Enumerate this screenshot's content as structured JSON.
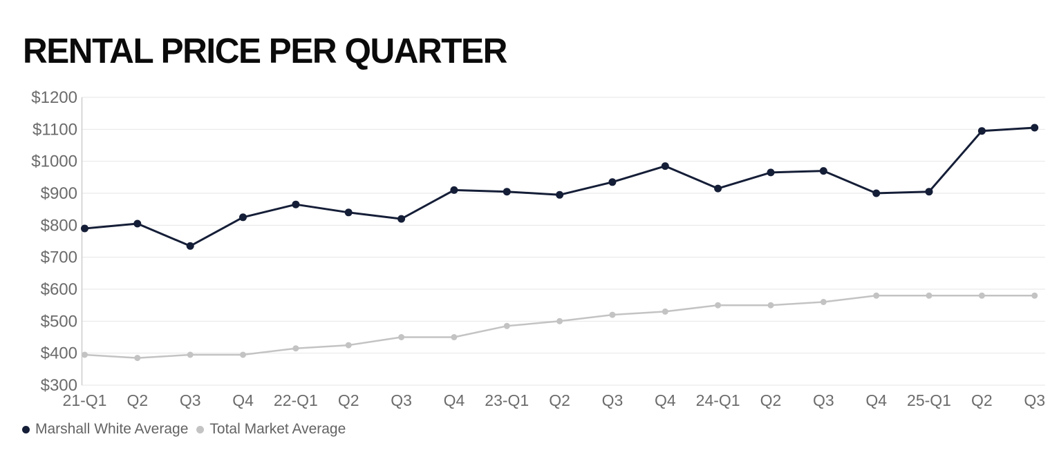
{
  "title": "RENTAL PRICE PER QUARTER",
  "colors": {
    "title": "#0b0b0b",
    "navy": "#151e37",
    "gray": "#c3c3c3",
    "gridline": "#e6e6e6",
    "axis": "#cccccc",
    "tick_label": "#6b6b6b",
    "legend_label": "#636363",
    "background": "#ffffff"
  },
  "chart_data": {
    "type": "line",
    "title": "RENTAL PRICE PER QUARTER",
    "categories": [
      "21-Q1",
      "Q2",
      "Q3",
      "Q4",
      "22-Q1",
      "Q2",
      "Q3",
      "Q4",
      "23-Q1",
      "Q2",
      "Q3",
      "Q4",
      "24-Q1",
      "Q2",
      "Q3",
      "Q4",
      "25-Q1",
      "Q2",
      "Q3"
    ],
    "series": [
      {
        "name": "Marshall White Average",
        "color": "#151e37",
        "values": [
          790,
          805,
          735,
          825,
          865,
          840,
          820,
          910,
          905,
          895,
          935,
          985,
          915,
          965,
          970,
          900,
          905,
          1095,
          1105
        ]
      },
      {
        "name": "Total Market Average",
        "color": "#c3c3c3",
        "values": [
          395,
          385,
          395,
          395,
          415,
          425,
          450,
          450,
          485,
          500,
          520,
          530,
          550,
          550,
          560,
          580,
          580,
          580,
          580
        ]
      }
    ],
    "ylim": [
      300,
      1200
    ],
    "ytick_step": 100,
    "ytick_prefix": "$",
    "xlabel": "",
    "ylabel": "",
    "grid": true,
    "legend_position": "bottom-left"
  }
}
